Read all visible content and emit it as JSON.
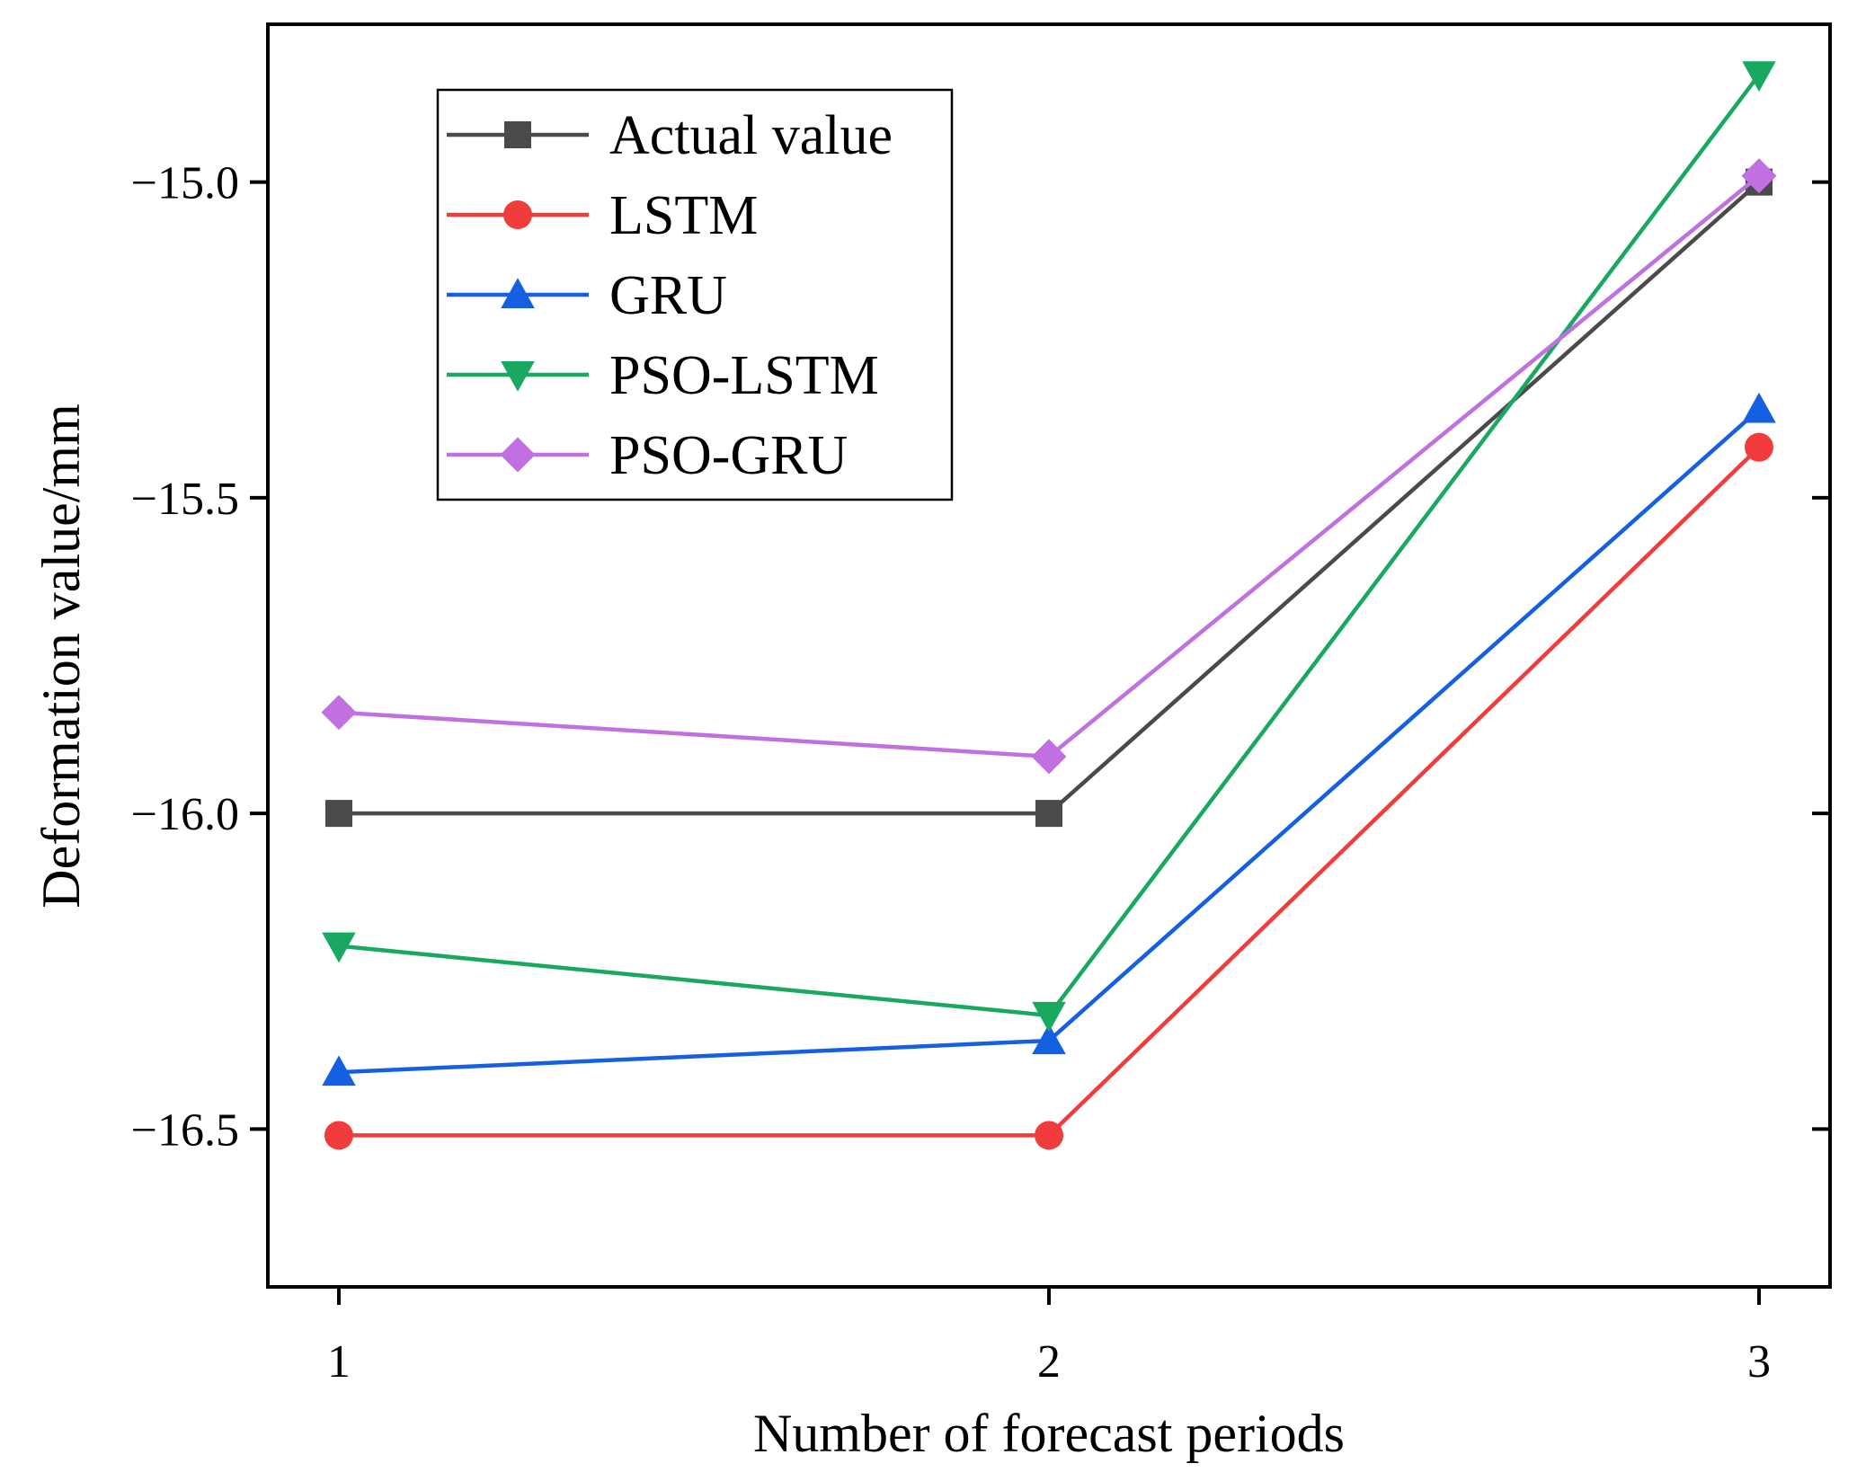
{
  "chart_data": {
    "type": "line",
    "title": "",
    "xlabel": "Number of forecast periods",
    "ylabel": "Deformation value/mm",
    "x": [
      1,
      2,
      3
    ],
    "xticks": [
      "1",
      "2",
      "3"
    ],
    "yticks": [
      "-15.0",
      "-15.5",
      "-16.0",
      "-16.5"
    ],
    "ytick_values": [
      -15.0,
      -15.5,
      -16.0,
      -16.5
    ],
    "xlim": [
      0.9,
      3.1
    ],
    "ylim": [
      -16.75,
      -14.75
    ],
    "grid": false,
    "legend_position": "top-left",
    "series": [
      {
        "name": "Actual value",
        "values": [
          -16.0,
          -16.0,
          -15.0
        ],
        "color": "#4a4a4a",
        "marker": "square"
      },
      {
        "name": "LSTM",
        "values": [
          -16.51,
          -16.51,
          -15.42
        ],
        "color": "#f03c3c",
        "marker": "circle"
      },
      {
        "name": "GRU",
        "values": [
          -16.41,
          -16.36,
          -15.36
        ],
        "color": "#1560e0",
        "marker": "triangle-up"
      },
      {
        "name": "PSO-LSTM",
        "values": [
          -16.21,
          -16.32,
          -14.83
        ],
        "color": "#19a860",
        "marker": "triangle-down"
      },
      {
        "name": "PSO-GRU",
        "values": [
          -15.84,
          -15.91,
          -14.99
        ],
        "color": "#c070e0",
        "marker": "diamond"
      }
    ]
  }
}
